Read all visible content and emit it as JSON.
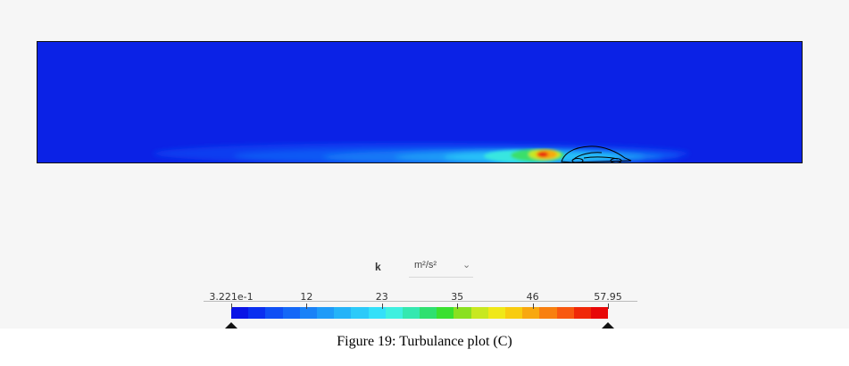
{
  "viewer": {
    "variable": "k",
    "unit": "m²/s²",
    "unit_dropdown_icon": "chevron-down-icon"
  },
  "legend": {
    "ticks": [
      "3.221e-1",
      "12",
      "23",
      "35",
      "46",
      "57.95"
    ],
    "min": 0.3221,
    "max": 57.95,
    "colors": [
      "#0a14e6",
      "#0a2ff0",
      "#0f4ff5",
      "#1468f7",
      "#1a82f7",
      "#1f9bf8",
      "#25b3f8",
      "#2ccaf9",
      "#34e0f9",
      "#3ff0e0",
      "#35e8b0",
      "#2fe070",
      "#3ae030",
      "#8ae020",
      "#c8e820",
      "#f0e818",
      "#f8cc10",
      "#f8a810",
      "#f88010",
      "#f85810",
      "#f02808",
      "#e80808"
    ]
  },
  "caption": "Figure 19: Turbulance plot (C)"
}
